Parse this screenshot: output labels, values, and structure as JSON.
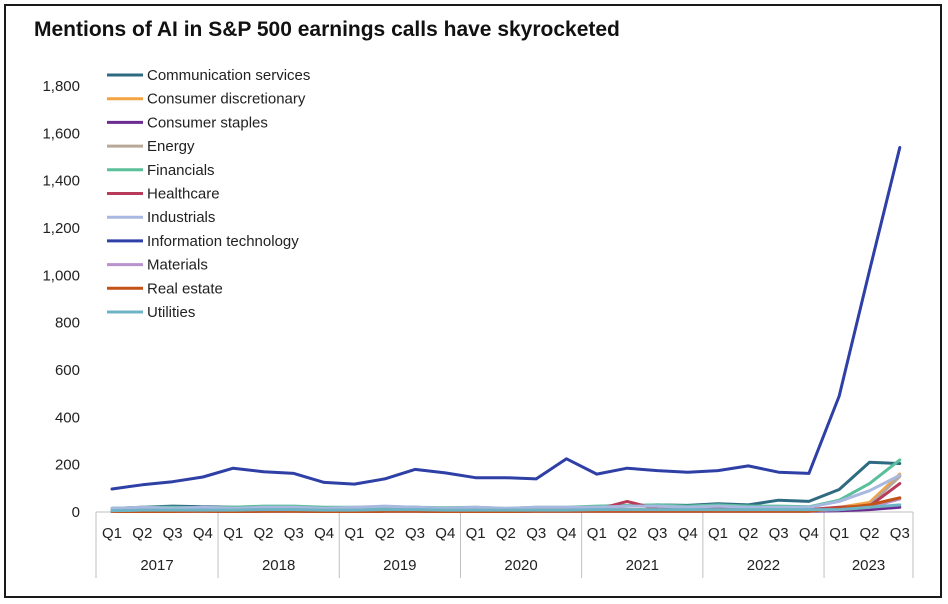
{
  "chart_data": {
    "type": "line",
    "title": "Mentions of AI in S&P 500 earnings calls have skyrocketed",
    "quarters": [
      "Q1",
      "Q2",
      "Q3",
      "Q4",
      "Q1",
      "Q2",
      "Q3",
      "Q4",
      "Q1",
      "Q2",
      "Q3",
      "Q4",
      "Q1",
      "Q2",
      "Q3",
      "Q4",
      "Q1",
      "Q2",
      "Q3",
      "Q4",
      "Q1",
      "Q2",
      "Q3",
      "Q4",
      "Q1",
      "Q2",
      "Q3"
    ],
    "years": [
      "2017",
      "2018",
      "2019",
      "2020",
      "2021",
      "2022",
      "2023"
    ],
    "y_ticks": [
      "0",
      "200",
      "400",
      "600",
      "800",
      "1,000",
      "1,200",
      "1,400",
      "1,600",
      "1,800"
    ],
    "ylim": [
      0,
      1800
    ],
    "grid": false,
    "legend_position": "top-left",
    "series": [
      {
        "name": "Communication services",
        "color": "#2e6b82",
        "values": [
          15,
          20,
          25,
          22,
          20,
          18,
          20,
          15,
          18,
          22,
          20,
          15,
          15,
          12,
          15,
          18,
          20,
          25,
          30,
          28,
          35,
          30,
          50,
          45,
          95,
          210,
          205
        ]
      },
      {
        "name": "Consumer discretionary",
        "color": "#f4a343",
        "values": [
          8,
          8,
          10,
          10,
          8,
          10,
          10,
          8,
          8,
          10,
          10,
          8,
          8,
          5,
          10,
          10,
          10,
          10,
          12,
          12,
          10,
          10,
          10,
          10,
          20,
          40,
          160
        ]
      },
      {
        "name": "Consumer staples",
        "color": "#6a2c91",
        "values": [
          2,
          2,
          3,
          3,
          2,
          3,
          3,
          2,
          2,
          3,
          3,
          2,
          2,
          2,
          3,
          3,
          3,
          3,
          3,
          3,
          3,
          3,
          3,
          3,
          5,
          10,
          20
        ]
      },
      {
        "name": "Energy",
        "color": "#b8a898",
        "values": [
          5,
          5,
          5,
          5,
          5,
          5,
          8,
          5,
          5,
          5,
          5,
          5,
          5,
          5,
          5,
          5,
          5,
          5,
          8,
          5,
          5,
          5,
          8,
          5,
          10,
          30,
          150
        ]
      },
      {
        "name": "Financials",
        "color": "#5bbf9c",
        "values": [
          15,
          20,
          20,
          18,
          20,
          25,
          25,
          20,
          20,
          22,
          20,
          18,
          20,
          15,
          20,
          20,
          25,
          28,
          30,
          25,
          30,
          25,
          25,
          22,
          50,
          120,
          220
        ]
      },
      {
        "name": "Healthcare",
        "color": "#b83c5a",
        "values": [
          5,
          5,
          5,
          8,
          5,
          8,
          8,
          5,
          5,
          8,
          8,
          10,
          10,
          5,
          8,
          8,
          10,
          45,
          12,
          15,
          15,
          12,
          10,
          10,
          20,
          25,
          120
        ]
      },
      {
        "name": "Industrials",
        "color": "#a9b8e0",
        "values": [
          15,
          20,
          15,
          20,
          15,
          20,
          20,
          15,
          20,
          25,
          20,
          15,
          20,
          15,
          20,
          20,
          20,
          25,
          25,
          20,
          25,
          20,
          20,
          20,
          45,
          90,
          155
        ]
      },
      {
        "name": "Information technology",
        "color": "#2e3fa6",
        "values": [
          97,
          115,
          128,
          148,
          185,
          170,
          163,
          125,
          118,
          140,
          180,
          165,
          145,
          145,
          140,
          225,
          160,
          185,
          175,
          168,
          175,
          195,
          168,
          163,
          490,
          1020,
          1540
        ]
      },
      {
        "name": "Materials",
        "color": "#b792cc",
        "values": [
          3,
          3,
          3,
          5,
          3,
          5,
          5,
          3,
          3,
          5,
          5,
          3,
          3,
          3,
          5,
          5,
          5,
          5,
          5,
          5,
          5,
          5,
          5,
          5,
          10,
          20,
          55
        ]
      },
      {
        "name": "Real estate",
        "color": "#c45216",
        "values": [
          2,
          2,
          2,
          3,
          2,
          3,
          3,
          2,
          2,
          3,
          3,
          2,
          2,
          2,
          3,
          3,
          3,
          3,
          3,
          3,
          3,
          3,
          3,
          3,
          15,
          30,
          60
        ]
      },
      {
        "name": "Utilities",
        "color": "#6db3c4",
        "values": [
          5,
          8,
          8,
          8,
          8,
          10,
          10,
          8,
          8,
          10,
          10,
          8,
          8,
          8,
          8,
          8,
          10,
          10,
          10,
          10,
          10,
          10,
          10,
          10,
          10,
          20,
          30
        ]
      }
    ]
  }
}
